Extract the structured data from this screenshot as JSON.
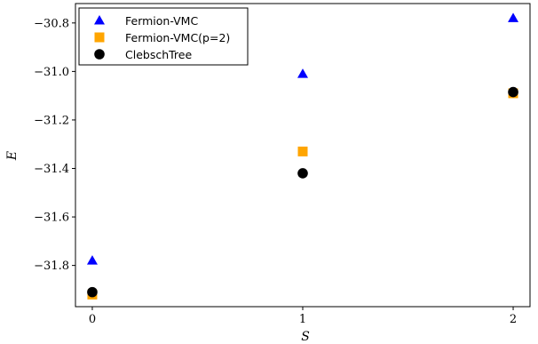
{
  "chart_data": {
    "type": "scatter",
    "title": "",
    "xlabel": "S",
    "ylabel": "E",
    "x": [
      0,
      1,
      2
    ],
    "xlim": [
      -0.08,
      2.08
    ],
    "ylim": [
      -31.97,
      -30.72
    ],
    "xticks": [
      {
        "value": 0,
        "label": "0"
      },
      {
        "value": 1,
        "label": "1"
      },
      {
        "value": 2,
        "label": "2"
      }
    ],
    "yticks": [
      {
        "value": -31.8,
        "label": "−31.8"
      },
      {
        "value": -31.6,
        "label": "−31.6"
      },
      {
        "value": -31.4,
        "label": "−31.4"
      },
      {
        "value": -31.2,
        "label": "−31.2"
      },
      {
        "value": -31.0,
        "label": "−31.0"
      },
      {
        "value": -30.8,
        "label": "−30.8"
      }
    ],
    "grid": false,
    "legend_position": "top-left",
    "series": [
      {
        "name": "Fermion-VMC",
        "marker": "triangle",
        "color": "#0000ff",
        "values": [
          -31.78,
          -31.01,
          -30.78
        ]
      },
      {
        "name": "Fermion-VMC(p=2)",
        "marker": "square",
        "color": "#ffa500",
        "values": [
          -31.92,
          -31.33,
          -31.09
        ]
      },
      {
        "name": "ClebschTree",
        "marker": "circle",
        "color": "#000000",
        "values": [
          -31.91,
          -31.42,
          -31.085
        ]
      }
    ]
  }
}
